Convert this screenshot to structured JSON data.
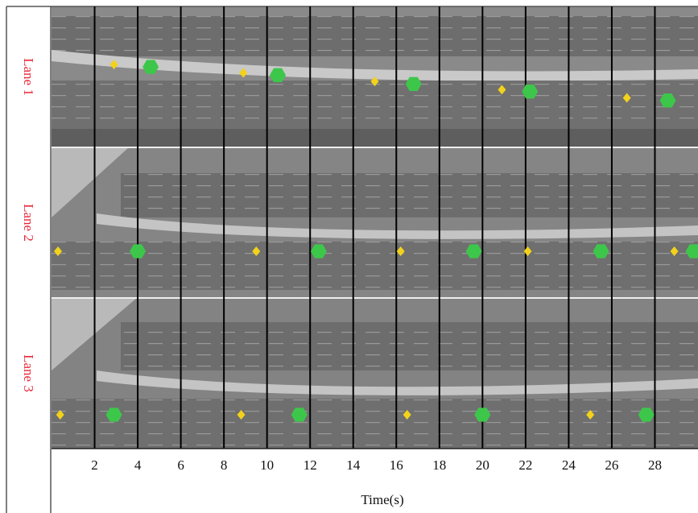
{
  "chart_data": {
    "type": "lane-track",
    "x_label": "Time(s)",
    "categories": [
      "Lane 1",
      "Lane 2",
      "Lane 3"
    ],
    "xlim": [
      0,
      30
    ],
    "xticks": [
      2,
      4,
      6,
      8,
      10,
      12,
      14,
      16,
      18,
      20,
      22,
      24,
      26,
      28
    ],
    "grid": true,
    "series": [
      {
        "color": "#f2d21b",
        "shape": "diamond",
        "lanes": [
          [
            2.9,
            8.9,
            15.0,
            20.9,
            26.7
          ],
          [
            0.3,
            9.5,
            16.2,
            22.1,
            28.9
          ],
          [
            0.4,
            8.8,
            16.5,
            25.0
          ]
        ]
      },
      {
        "color": "#3dc74a",
        "shape": "hexagon",
        "lanes": [
          [
            4.6,
            10.5,
            16.8,
            22.2,
            28.6
          ],
          [
            4.0,
            12.4,
            19.6,
            25.5,
            29.8
          ],
          [
            2.9,
            11.5,
            20.0,
            27.6
          ]
        ]
      }
    ]
  }
}
